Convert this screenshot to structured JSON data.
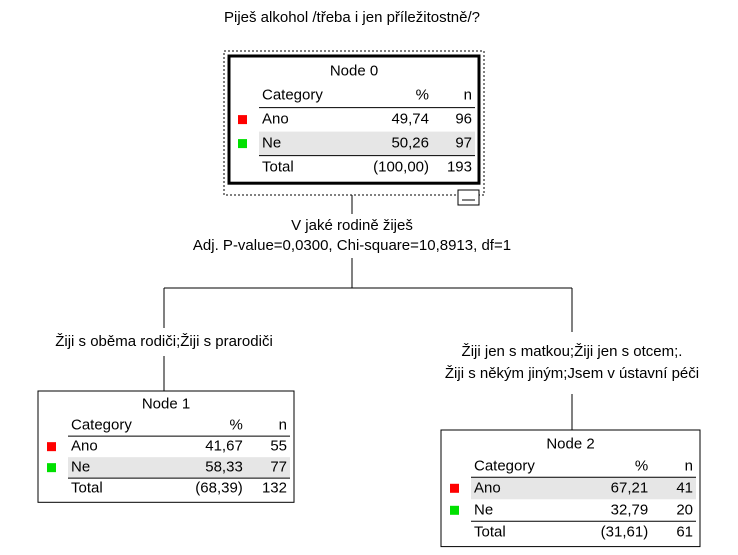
{
  "title": "Piješ alkohol /třeba i jen příležitostně/?",
  "split": {
    "variable": "V jaké rodině žiješ",
    "stats": "Adj. P-value=0,0300, Chi-square=10,8913, df=1"
  },
  "branches": [
    {
      "label_lines": [
        "Žiji s oběma rodiči;Žiji s prarodiči"
      ]
    },
    {
      "label_lines": [
        "Žiji jen s matkou;Žiji jen s otcem;.",
        "Žiji s někým jiným;Jsem v ústavní péči"
      ]
    }
  ],
  "nodes": [
    {
      "title": "Node 0",
      "header": [
        "Category",
        "%",
        "n"
      ],
      "rows": [
        [
          "Ano",
          "49,74",
          96
        ],
        [
          "Ne",
          "50,26",
          97
        ]
      ],
      "total": [
        "Total",
        "(100,00)",
        193
      ]
    },
    {
      "title": "Node 1",
      "header": [
        "Category",
        "%",
        "n"
      ],
      "rows": [
        [
          "Ano",
          "41,67",
          55
        ],
        [
          "Ne",
          "58,33",
          77
        ]
      ],
      "total": [
        "Total",
        "(68,39)",
        132
      ]
    },
    {
      "title": "Node 2",
      "header": [
        "Category",
        "%",
        "n"
      ],
      "rows": [
        [
          "Ano",
          "67,21",
          41
        ],
        [
          "Ne",
          "32,79",
          20
        ]
      ],
      "total": [
        "Total",
        "(31,61)",
        61
      ]
    }
  ]
}
